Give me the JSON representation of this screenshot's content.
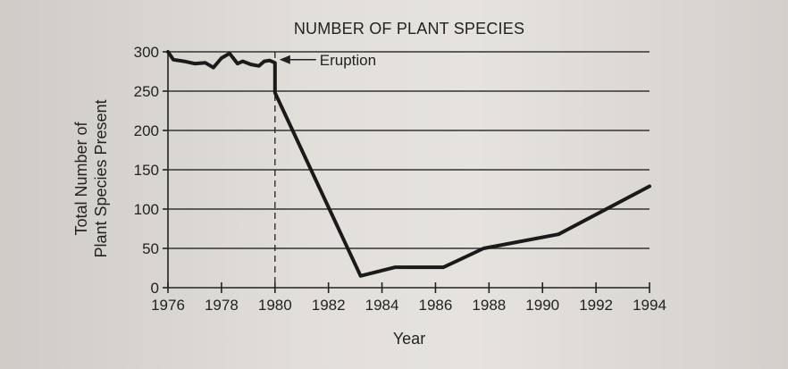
{
  "chart_data": {
    "type": "line",
    "title": "NUMBER OF PLANT SPECIES",
    "xlabel": "Year",
    "ylabel_lines": [
      "Total Number of",
      "Plant Species Present"
    ],
    "xlim": [
      1976,
      1994
    ],
    "ylim": [
      0,
      300
    ],
    "x_ticks": [
      1976,
      1978,
      1980,
      1982,
      1984,
      1986,
      1988,
      1990,
      1992,
      1994
    ],
    "y_ticks": [
      0,
      50,
      100,
      150,
      200,
      250,
      300
    ],
    "grid": "horizontal",
    "eruption_year": 1980,
    "annotation": "Eruption",
    "series": [
      {
        "points": [
          [
            1976.0,
            300
          ],
          [
            1976.2,
            290
          ],
          [
            1976.6,
            288
          ],
          [
            1977.0,
            285
          ],
          [
            1977.4,
            286
          ],
          [
            1977.7,
            280
          ],
          [
            1978.0,
            292
          ],
          [
            1978.3,
            298
          ],
          [
            1978.6,
            285
          ],
          [
            1978.8,
            288
          ],
          [
            1979.1,
            284
          ],
          [
            1979.4,
            282
          ],
          [
            1979.6,
            288
          ],
          [
            1979.8,
            289
          ],
          [
            1980.0,
            286
          ],
          [
            1980.0,
            248
          ],
          [
            1983.2,
            15
          ],
          [
            1984.5,
            26
          ],
          [
            1986.3,
            26
          ],
          [
            1987.8,
            50
          ],
          [
            1990.6,
            68
          ],
          [
            1994.0,
            129
          ]
        ]
      }
    ]
  }
}
